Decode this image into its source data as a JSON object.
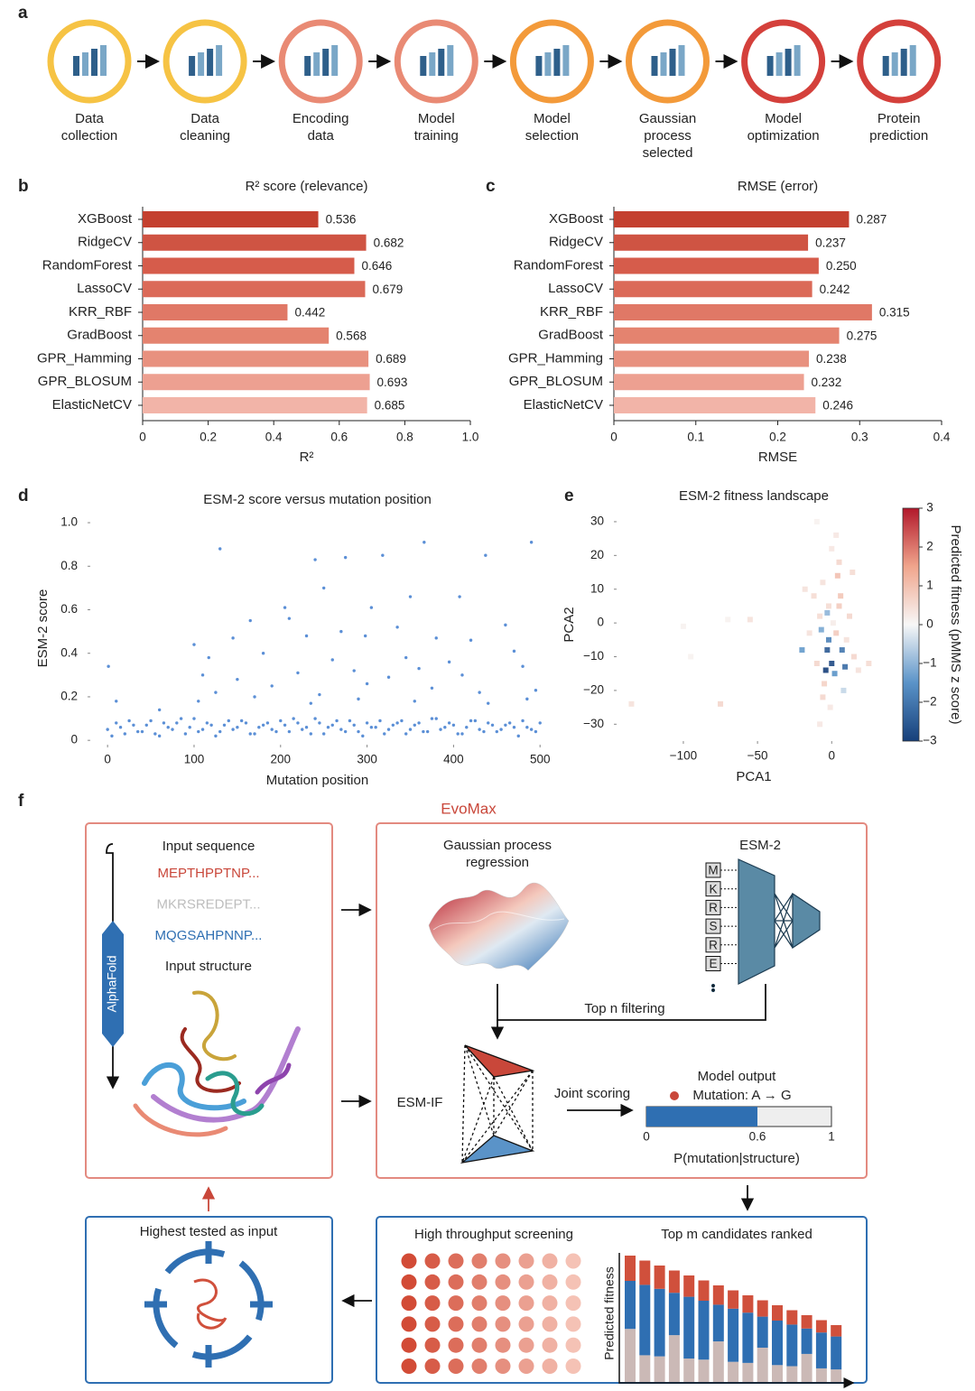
{
  "panel_labels": [
    "a",
    "b",
    "c",
    "d",
    "e",
    "f"
  ],
  "workflow": {
    "steps": [
      [
        "Data",
        "collection"
      ],
      [
        "Data",
        "cleaning"
      ],
      [
        "Encoding",
        "data"
      ],
      [
        "Model",
        "training"
      ],
      [
        "Model",
        "selection"
      ],
      [
        "Gaussian",
        "process",
        "selected"
      ],
      [
        "Model",
        "optimization"
      ],
      [
        "Protein",
        "prediction"
      ]
    ],
    "ring_colors": [
      "#f6c344",
      "#f6c344",
      "#e98a74",
      "#e98a74",
      "#f39a3a",
      "#f39a3a",
      "#d4403b",
      "#d4403b"
    ]
  },
  "chart_data": [
    {
      "type": "bar",
      "title": "R² score (relevance)",
      "x_label": "R²",
      "categories": [
        "XGBoost",
        "RidgeCV",
        "RandomForest",
        "LassoCV",
        "KRR_RBF",
        "GradBoost",
        "GPR_Hamming",
        "GPR_BLOSUM",
        "ElasticNetCV"
      ],
      "values": [
        0.536,
        0.682,
        0.646,
        0.679,
        0.442,
        0.568,
        0.689,
        0.693,
        0.685
      ],
      "colors": [
        "#c4402f",
        "#cf5443",
        "#d65c4b",
        "#db6a58",
        "#e07866",
        "#e4836f",
        "#e8917f",
        "#eda091",
        "#f2b4a8"
      ],
      "xlim": [
        0,
        1
      ],
      "xticks": [
        0,
        0.2,
        0.4,
        0.6,
        0.8,
        {
          "value": 1,
          "label": "1.0"
        }
      ]
    },
    {
      "type": "bar",
      "title": "RMSE (error)",
      "x_label": "RMSE",
      "categories": [
        "XGBoost",
        "RidgeCV",
        "RandomForest",
        "LassoCV",
        "KRR_RBF",
        "GradBoost",
        "GPR_Hamming",
        "GPR_BLOSUM",
        "ElasticNetCV"
      ],
      "values": [
        0.287,
        0.237,
        0.25,
        0.242,
        0.315,
        0.275,
        0.238,
        0.232,
        0.246
      ],
      "value_labels": [
        "0.287",
        "0.237",
        "0.250",
        "0.242",
        "0.315",
        "0.275",
        "0.238",
        "0.232",
        "0.246"
      ],
      "colors": [
        "#c4402f",
        "#cf5443",
        "#d65c4b",
        "#db6a58",
        "#e07866",
        "#e4836f",
        "#e8917f",
        "#eda091",
        "#f2b4a8"
      ],
      "xlim": [
        0,
        0.4
      ],
      "xticks": [
        0,
        0.1,
        0.2,
        0.3,
        0.4
      ]
    },
    {
      "type": "scatter",
      "title": "ESM-2 score versus mutation position",
      "x_label": "Mutation position",
      "y_label": "ESM-2 score",
      "color": "#5b8fd6",
      "x": [
        0,
        10,
        20,
        30,
        40,
        50,
        60,
        70,
        80,
        90,
        100,
        110,
        120,
        130,
        140,
        150,
        160,
        170,
        180,
        190,
        200,
        210,
        220,
        230,
        240,
        250,
        260,
        270,
        280,
        290,
        300,
        310,
        320,
        330,
        340,
        350,
        360,
        370,
        380,
        390,
        400,
        410,
        420,
        430,
        440,
        450,
        460,
        470,
        480,
        490,
        500,
        5,
        15,
        25,
        35,
        45,
        55,
        65,
        75,
        85,
        95,
        105,
        115,
        125,
        135,
        145,
        155,
        165,
        175,
        185,
        195,
        205,
        215,
        225,
        235,
        245,
        255,
        265,
        275,
        285,
        295,
        305,
        315,
        325,
        335,
        345,
        355,
        365,
        375,
        385,
        395,
        405,
        415,
        425,
        435,
        445,
        455,
        465,
        475,
        485,
        495,
        1,
        130,
        240,
        275,
        318,
        366,
        437,
        490,
        250,
        205,
        305,
        350,
        407,
        210,
        165,
        270,
        335,
        460,
        100,
        145,
        230,
        298,
        380,
        420,
        117,
        180,
        260,
        345,
        395,
        470,
        110,
        150,
        220,
        285,
        325,
        360,
        410,
        480,
        125,
        190,
        245,
        300,
        375,
        430,
        495,
        10,
        60,
        105,
        170,
        235,
        290,
        355,
        440,
        485
      ],
      "y": [
        0.05,
        0.08,
        0.03,
        0.07,
        0.04,
        0.09,
        0.02,
        0.06,
        0.08,
        0.03,
        0.1,
        0.05,
        0.07,
        0.04,
        0.09,
        0.06,
        0.08,
        0.03,
        0.07,
        0.05,
        0.09,
        0.04,
        0.08,
        0.06,
        0.1,
        0.03,
        0.07,
        0.05,
        0.09,
        0.04,
        0.08,
        0.06,
        0.03,
        0.07,
        0.09,
        0.05,
        0.08,
        0.04,
        0.1,
        0.06,
        0.07,
        0.03,
        0.09,
        0.05,
        0.08,
        0.04,
        0.07,
        0.06,
        0.09,
        0.05,
        0.08,
        0.02,
        0.06,
        0.09,
        0.04,
        0.07,
        0.03,
        0.08,
        0.05,
        0.1,
        0.06,
        0.04,
        0.08,
        0.02,
        0.07,
        0.05,
        0.09,
        0.03,
        0.06,
        0.08,
        0.04,
        0.07,
        0.1,
        0.05,
        0.03,
        0.08,
        0.06,
        0.09,
        0.04,
        0.07,
        0.02,
        0.06,
        0.09,
        0.05,
        0.08,
        0.03,
        0.07,
        0.04,
        0.1,
        0.05,
        0.08,
        0.03,
        0.06,
        0.09,
        0.04,
        0.07,
        0.05,
        0.08,
        0.02,
        0.06,
        0.04,
        0.34,
        0.88,
        0.83,
        0.84,
        0.85,
        0.91,
        0.85,
        0.91,
        0.7,
        0.61,
        0.61,
        0.66,
        0.66,
        0.56,
        0.55,
        0.5,
        0.52,
        0.53,
        0.44,
        0.47,
        0.48,
        0.48,
        0.47,
        0.46,
        0.38,
        0.4,
        0.37,
        0.38,
        0.36,
        0.41,
        0.3,
        0.28,
        0.31,
        0.32,
        0.29,
        0.33,
        0.3,
        0.34,
        0.22,
        0.25,
        0.21,
        0.26,
        0.24,
        0.22,
        0.23,
        0.18,
        0.14,
        0.18,
        0.2,
        0.17,
        0.19,
        0.18,
        0.17,
        0.19
      ],
      "xlim": [
        -20,
        505
      ],
      "ylim": [
        -0.02,
        1.05
      ],
      "xticks": [
        0,
        100,
        200,
        300,
        400,
        500
      ],
      "yticks": [
        0,
        0.2,
        0.4,
        0.6,
        0.8,
        {
          "value": 1,
          "label": "1.0"
        }
      ]
    },
    {
      "type": "scatter",
      "title": "ESM-2 fitness landscape",
      "x_label": "PCA1",
      "y_label": "PCA2",
      "x": [
        -2,
        3,
        -6,
        5,
        0,
        -3,
        2,
        -5,
        6,
        -8,
        10,
        -10,
        8,
        -1,
        4,
        -7,
        12,
        -12,
        0,
        -4,
        7,
        -15,
        15,
        -3,
        1,
        -18,
        3,
        -8,
        14,
        -2,
        9,
        -6,
        18,
        -20,
        5,
        -135,
        -100,
        -95,
        -75,
        -70,
        -10,
        -55,
        25
      ],
      "y": [
        5,
        -3,
        12,
        18,
        22,
        -8,
        -15,
        -18,
        8,
        2,
        -5,
        -12,
        -20,
        -25,
        14,
        -2,
        2,
        8,
        -12,
        -14,
        -8,
        -3,
        -10,
        3,
        0,
        10,
        26,
        -30,
        15,
        -5,
        -13,
        -22,
        -14,
        -8,
        5,
        -24,
        -1,
        -10,
        -24,
        1,
        30,
        1,
        -12
      ],
      "values": [
        0.5,
        0.8,
        0.4,
        0.6,
        0.3,
        -2.5,
        -1.5,
        0.7,
        0.9,
        0.5,
        0.4,
        0.6,
        -0.5,
        0.3,
        1.0,
        -1.2,
        0.6,
        0.5,
        -2.8,
        -3,
        -2,
        0.4,
        0.6,
        -1,
        0.2,
        0.4,
        0.3,
        0.3,
        0.5,
        -1.8,
        -2.2,
        0.6,
        0.4,
        -1.4,
        0.8,
        0.4,
        0.1,
        0.1,
        0.6,
        0.1,
        0.1,
        0.4,
        0.5
      ],
      "colormap": [
        "#163f7a",
        "#5a93c8",
        "#f7f7f7",
        "#f0a58c",
        "#b2182b"
      ],
      "xlim": [
        -145,
        40
      ],
      "ylim": [
        -35,
        34
      ],
      "xticks": [
        {
          "value": -100,
          "label": "−100"
        },
        {
          "value": -50,
          "label": "−50"
        },
        0
      ],
      "yticks": [
        {
          "value": -30,
          "label": "−30"
        },
        {
          "value": -20,
          "label": "−20"
        },
        {
          "value": -10,
          "label": "−10"
        },
        0,
        10,
        20,
        30
      ],
      "colorbar": {
        "label": "Predicted fitness (pMMS z score)",
        "lim": [
          -3,
          3
        ],
        "ticks": [
          {
            "value": -3,
            "label": "−3"
          },
          {
            "value": -2,
            "label": "−2"
          },
          {
            "value": -1,
            "label": "−1"
          },
          0,
          1,
          2,
          3
        ]
      }
    }
  ],
  "evomax": {
    "title": "EvoMax",
    "input_sequence": "Input sequence",
    "sequences": [
      "MEPTHPPTNP...",
      "MKRSREDEPT...",
      "MQGSAHPNNP..."
    ],
    "sequence_colors": [
      "#c9473a",
      "#bdbdbd",
      "#2f6fb2"
    ],
    "alphafold": "AlphaFold",
    "input_structure": "Input structure",
    "gp": [
      "Gaussian process",
      "regression"
    ],
    "esm2": "ESM-2",
    "tokens": [
      "M",
      "K",
      "R",
      "S",
      "R",
      "E"
    ],
    "filtering": "Top n filtering",
    "esm_if": "ESM-IF",
    "joint": "Joint scoring",
    "model_output": {
      "title": "Model output",
      "mutation": "Mutation: A → G",
      "value": 0.6,
      "ticks": [
        0,
        0.6,
        1
      ],
      "xlabel": "P(mutation|structure)"
    },
    "highest": "Highest tested as input",
    "hts": "High throughput screening",
    "ranked": "Top m candidates ranked",
    "predicted_fitness": "Predicted fitness"
  }
}
